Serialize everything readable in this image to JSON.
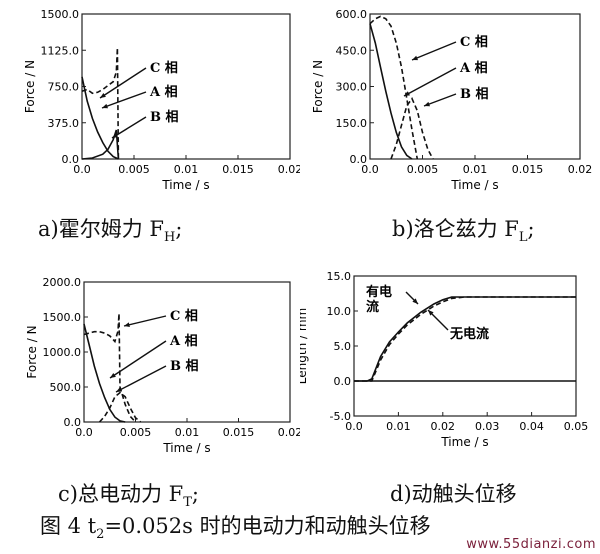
{
  "chart_data": [
    {
      "id": "hall",
      "type": "line",
      "caption_main": "a)霍尔姆力 F",
      "caption_sub": "H",
      "caption_tail": ";",
      "xlabel": "Time / s",
      "ylabel": "Force / N",
      "xlim": [
        0,
        0.02
      ],
      "ylim": [
        0,
        1500
      ],
      "xticks": [
        "0.0",
        "0.005",
        "0.01",
        "0.015",
        "0.02"
      ],
      "yticks": [
        "0.0",
        "375.0",
        "750.0",
        "1125.0",
        "1500.0"
      ],
      "annotations": [
        "C 相",
        "A 相",
        "B 相"
      ],
      "series": [
        {
          "name": "C 相",
          "style": "dash",
          "x": [
            0,
            0.0005,
            0.001,
            0.0015,
            0.002,
            0.0025,
            0.003,
            0.0033,
            0.0034,
            0.0035
          ],
          "y": [
            700,
            720,
            680,
            690,
            720,
            760,
            800,
            900,
            1150,
            0
          ]
        },
        {
          "name": "A 相",
          "style": "solid",
          "x": [
            0,
            0.0005,
            0.001,
            0.0015,
            0.002,
            0.0025,
            0.003,
            0.0035
          ],
          "y": [
            850,
            600,
            420,
            280,
            170,
            80,
            25,
            0
          ]
        },
        {
          "name": "B 相",
          "style": "solid",
          "x": [
            0,
            0.001,
            0.002,
            0.0025,
            0.003,
            0.0033,
            0.0035
          ],
          "y": [
            0,
            10,
            50,
            100,
            200,
            300,
            0
          ]
        }
      ]
    },
    {
      "id": "lorentz",
      "type": "line",
      "caption_main": "b)洛仑兹力 F",
      "caption_sub": "L",
      "caption_tail": ";",
      "xlabel": "Time / s",
      "ylabel": "Force / N",
      "xlim": [
        0,
        0.02
      ],
      "ylim": [
        0,
        600
      ],
      "xticks": [
        "0.0",
        "0.005",
        "0.01",
        "0.015",
        "0.02"
      ],
      "yticks": [
        "0.0",
        "150.0",
        "300.0",
        "450.0",
        "600.0"
      ],
      "annotations": [
        "C 相",
        "A 相",
        "B 相"
      ],
      "series": [
        {
          "name": "C 相",
          "style": "dash",
          "x": [
            0,
            0.0005,
            0.001,
            0.0015,
            0.002,
            0.0025,
            0.003,
            0.0035,
            0.004,
            0.0045
          ],
          "y": [
            560,
            580,
            590,
            580,
            550,
            480,
            380,
            250,
            120,
            0
          ]
        },
        {
          "name": "A 相",
          "style": "solid",
          "x": [
            0,
            0.0005,
            0.001,
            0.0015,
            0.002,
            0.0025,
            0.003,
            0.0035,
            0.004
          ],
          "y": [
            560,
            480,
            380,
            280,
            190,
            110,
            50,
            15,
            0
          ]
        },
        {
          "name": "B 相",
          "style": "dash",
          "x": [
            0.002,
            0.0025,
            0.003,
            0.0035,
            0.004,
            0.0045,
            0.005,
            0.0055,
            0.006
          ],
          "y": [
            0,
            60,
            140,
            220,
            250,
            200,
            110,
            40,
            0
          ]
        }
      ]
    },
    {
      "id": "total",
      "type": "line",
      "caption_main": "c)总电动力 F",
      "caption_sub": "T",
      "caption_tail": ";",
      "xlabel": "Time / s",
      "ylabel": "Force / N",
      "xlim": [
        0,
        0.02
      ],
      "ylim": [
        0,
        2000
      ],
      "xticks": [
        "0.0",
        "0.005",
        "0.01",
        "0.015",
        "0.02"
      ],
      "yticks": [
        "0.0",
        "500.0",
        "1000.0",
        "1500.0",
        "2000.0"
      ],
      "annotations": [
        "C 相",
        "A 相",
        "B 相"
      ],
      "series": [
        {
          "name": "C 相",
          "style": "dash",
          "x": [
            0,
            0.0005,
            0.001,
            0.0015,
            0.002,
            0.0025,
            0.003,
            0.0033,
            0.0034,
            0.0035,
            0.004,
            0.0045,
            0.005
          ],
          "y": [
            1250,
            1270,
            1290,
            1290,
            1270,
            1230,
            1150,
            1300,
            1550,
            500,
            250,
            80,
            0
          ]
        },
        {
          "name": "A 相",
          "style": "solid",
          "x": [
            0,
            0.0005,
            0.001,
            0.0015,
            0.002,
            0.0025,
            0.003,
            0.0035,
            0.004
          ],
          "y": [
            1400,
            1100,
            800,
            550,
            350,
            180,
            70,
            15,
            0
          ]
        },
        {
          "name": "B 相",
          "style": "dash",
          "x": [
            0.0015,
            0.002,
            0.0025,
            0.003,
            0.0035,
            0.004,
            0.0045,
            0.005,
            0.0055
          ],
          "y": [
            0,
            80,
            200,
            360,
            420,
            360,
            200,
            60,
            0
          ]
        }
      ]
    },
    {
      "id": "displacement",
      "type": "line",
      "caption_main": "d)动触头位移",
      "caption_sub": "",
      "caption_tail": "",
      "xlabel": "Time / s",
      "ylabel": "Length / mm",
      "xlim": [
        0,
        0.05
      ],
      "ylim": [
        -5,
        15
      ],
      "xticks": [
        "0.0",
        "0.01",
        "0.02",
        "0.03",
        "0.04",
        "0.05"
      ],
      "yticks": [
        "-5.0",
        "0.0",
        "5.0",
        "10.0",
        "15.0"
      ],
      "annotations": [
        "有电\n流",
        "无电流"
      ],
      "series": [
        {
          "name": "有电流",
          "style": "solid",
          "x": [
            0,
            0.003,
            0.004,
            0.006,
            0.008,
            0.01,
            0.012,
            0.015,
            0.018,
            0.02,
            0.022,
            0.025,
            0.03,
            0.04,
            0.05
          ],
          "y": [
            0,
            0,
            0.3,
            3.5,
            5.6,
            7.0,
            8.3,
            9.8,
            11.0,
            11.6,
            12.0,
            12.0,
            12.0,
            12.0,
            12.0
          ]
        },
        {
          "name": "无电流",
          "style": "dash",
          "x": [
            0,
            0.004,
            0.006,
            0.008,
            0.01,
            0.012,
            0.015,
            0.018,
            0.02,
            0.022,
            0.025,
            0.03,
            0.04,
            0.05
          ],
          "y": [
            0,
            0,
            3.0,
            5.2,
            6.7,
            8.0,
            9.5,
            10.7,
            11.3,
            11.8,
            12.0,
            12.0,
            12.0,
            12.0
          ]
        },
        {
          "name": "",
          "style": "solid",
          "x": [
            0,
            0.05
          ],
          "y": [
            0,
            0
          ]
        }
      ]
    }
  ],
  "figure_caption": {
    "prefix": "图 4    t",
    "sub": "2",
    "suffix": "=0.052s 时的电动力和动触头位移"
  },
  "watermark": "www.55dianzi.com"
}
